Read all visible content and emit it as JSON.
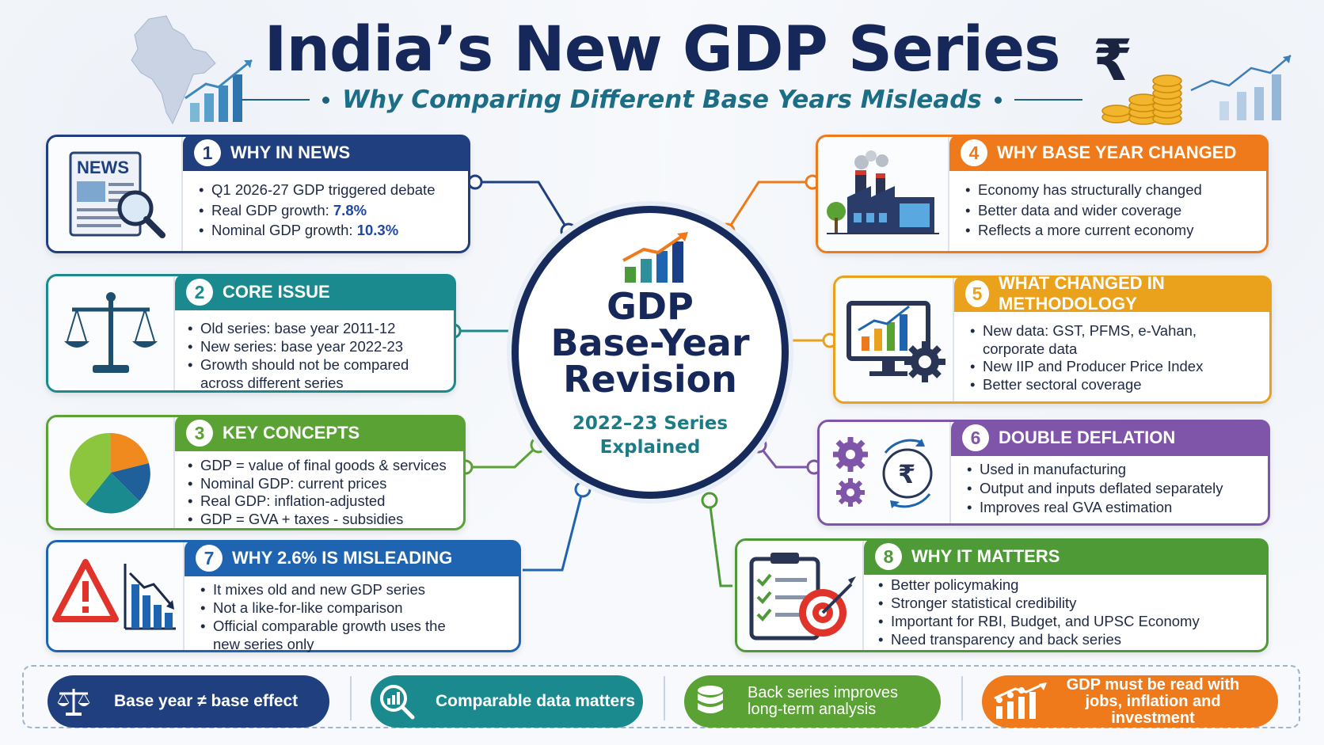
{
  "header": {
    "title": "India’s New GDP Series",
    "subtitle": "Why Comparing Different Base Years Misleads"
  },
  "center": {
    "title_lines": [
      "GDP",
      "Base-Year",
      "Revision"
    ],
    "sub_lines": [
      "2022–23 Series",
      "Explained"
    ]
  },
  "cards": [
    {
      "num": "1",
      "title": "WHY IN NEWS",
      "color": "#1f3f7f",
      "items": [
        {
          "text": "Q1 2026-27 GDP triggered debate"
        },
        {
          "text": "Real GDP growth: ",
          "value": "7.8%"
        },
        {
          "text": "Nominal GDP growth: ",
          "value": "10.3%"
        }
      ],
      "icon": "newspaper-magnifier-icon",
      "icon_label": "NEWS"
    },
    {
      "num": "2",
      "title": "CORE ISSUE",
      "color": "#1b8a8f",
      "items": [
        {
          "text": "Old series: base year 2011-12"
        },
        {
          "text": "New series: base year 2022-23"
        },
        {
          "text": "Growth should not be compared across different series"
        }
      ],
      "icon": "balance-scale-icon"
    },
    {
      "num": "3",
      "title": "KEY CONCEPTS",
      "color": "#5aa233",
      "items": [
        {
          "text": "GDP = value of final goods & services"
        },
        {
          "text": "Nominal GDP: current prices"
        },
        {
          "text": "Real GDP: inflation-adjusted"
        },
        {
          "text": "GDP = GVA + taxes - subsidies"
        }
      ],
      "icon": "pie-chart-icon"
    },
    {
      "num": "7",
      "title": "WHY 2.6% IS MISLEADING",
      "color": "#1f64b0",
      "items": [
        {
          "text": "It mixes old and new GDP series"
        },
        {
          "text": "Not a like-for-like comparison"
        },
        {
          "text": "Official comparable growth uses the new series only"
        }
      ],
      "icon": "warning-declining-chart-icon"
    },
    {
      "num": "4",
      "title": "WHY BASE YEAR CHANGED",
      "color": "#ee7a1c",
      "items": [
        {
          "text": "Economy has structurally changed"
        },
        {
          "text": "Better data and wider coverage"
        },
        {
          "text": "Reflects a more current economy"
        }
      ],
      "icon": "factory-icon"
    },
    {
      "num": "5",
      "title": "WHAT CHANGED IN METHODOLOGY",
      "color": "#eaa21c",
      "items": [
        {
          "text": "New data: GST, PFMS, e-Vahan, corporate data"
        },
        {
          "text": "New IIP and Producer Price Index"
        },
        {
          "text": "Better sectoral coverage"
        }
      ],
      "icon": "monitor-chart-gear-icon"
    },
    {
      "num": "6",
      "title": "DOUBLE DEFLATION",
      "color": "#7e55a8",
      "items": [
        {
          "text": "Used in manufacturing"
        },
        {
          "text": "Output and inputs deflated separately"
        },
        {
          "text": "Improves real GVA estimation"
        }
      ],
      "icon": "gears-rupee-cycle-icon",
      "icon_label": "₹"
    },
    {
      "num": "8",
      "title": "WHY IT MATTERS",
      "color": "#4d9a36",
      "items": [
        {
          "text": "Better policymaking"
        },
        {
          "text": "Stronger statistical credibility"
        },
        {
          "text": "Important for RBI, Budget, and UPSC Economy"
        },
        {
          "text": "Need transparency and back series"
        }
      ],
      "icon": "checklist-target-icon"
    }
  ],
  "bottom": [
    {
      "label": "Base year ≠ base effect",
      "color": "#1f3f7f",
      "icon": "balance-scale-icon"
    },
    {
      "label": "Comparable data matters",
      "color": "#1b8a8f",
      "icon": "magnifier-chart-icon"
    },
    {
      "label": "Back series improves long-term analysis",
      "color": "#5aa233",
      "icon": "database-icon"
    },
    {
      "label": "GDP must be read with jobs, inflation and investment",
      "color": "#ee7a1c",
      "icon": "people-growth-icon"
    }
  ],
  "decor": {
    "rupee_symbol": "₹"
  }
}
